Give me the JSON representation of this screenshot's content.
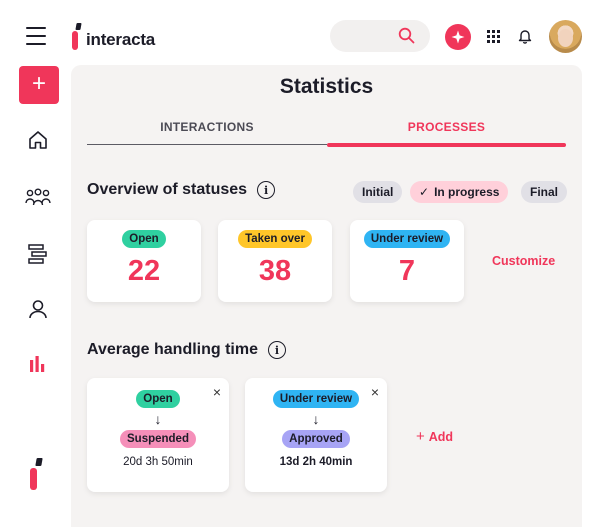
{
  "header": {
    "app_name": "interacta",
    "search_placeholder": "",
    "icons": [
      "menu-icon",
      "search-icon",
      "sparkle-icon",
      "apps-grid-icon",
      "bell-icon"
    ]
  },
  "sidebar": {
    "new_label": "+",
    "items": [
      {
        "icon": "home-icon"
      },
      {
        "icon": "community-icon"
      },
      {
        "icon": "processes-icon"
      },
      {
        "icon": "profile-icon"
      },
      {
        "icon": "statistics-icon",
        "active": true
      }
    ]
  },
  "main": {
    "title": "Statistics",
    "tabs": [
      {
        "label": "INTERACTIONS",
        "active": false
      },
      {
        "label": "PROCESSES",
        "active": true
      }
    ],
    "overview": {
      "title": "Overview of statuses",
      "filters": [
        {
          "label": "Initial",
          "active": false
        },
        {
          "label": "In progress",
          "active": true,
          "check": "✓"
        },
        {
          "label": "Final",
          "active": false
        }
      ],
      "cards": [
        {
          "status": "Open",
          "value": "22",
          "color": "#2fd0a0"
        },
        {
          "status": "Taken over",
          "value": "38",
          "color": "#ffc629"
        },
        {
          "status": "Under review",
          "value": "7",
          "color": "#2fb4f3"
        }
      ],
      "customize_label": "Customize"
    },
    "handling": {
      "title": "Average handling time",
      "cards": [
        {
          "from": "Open",
          "to": "Suspended",
          "time": "20d 3h 50min"
        },
        {
          "from": "Under review",
          "to": "Approved",
          "time": "13d 2h 40min"
        }
      ],
      "arrow": "↓",
      "close": "×",
      "add_label": "Add",
      "add_plus": "+"
    }
  },
  "colors": {
    "accent": "#f0365a",
    "panel": "#f5f3f2"
  }
}
